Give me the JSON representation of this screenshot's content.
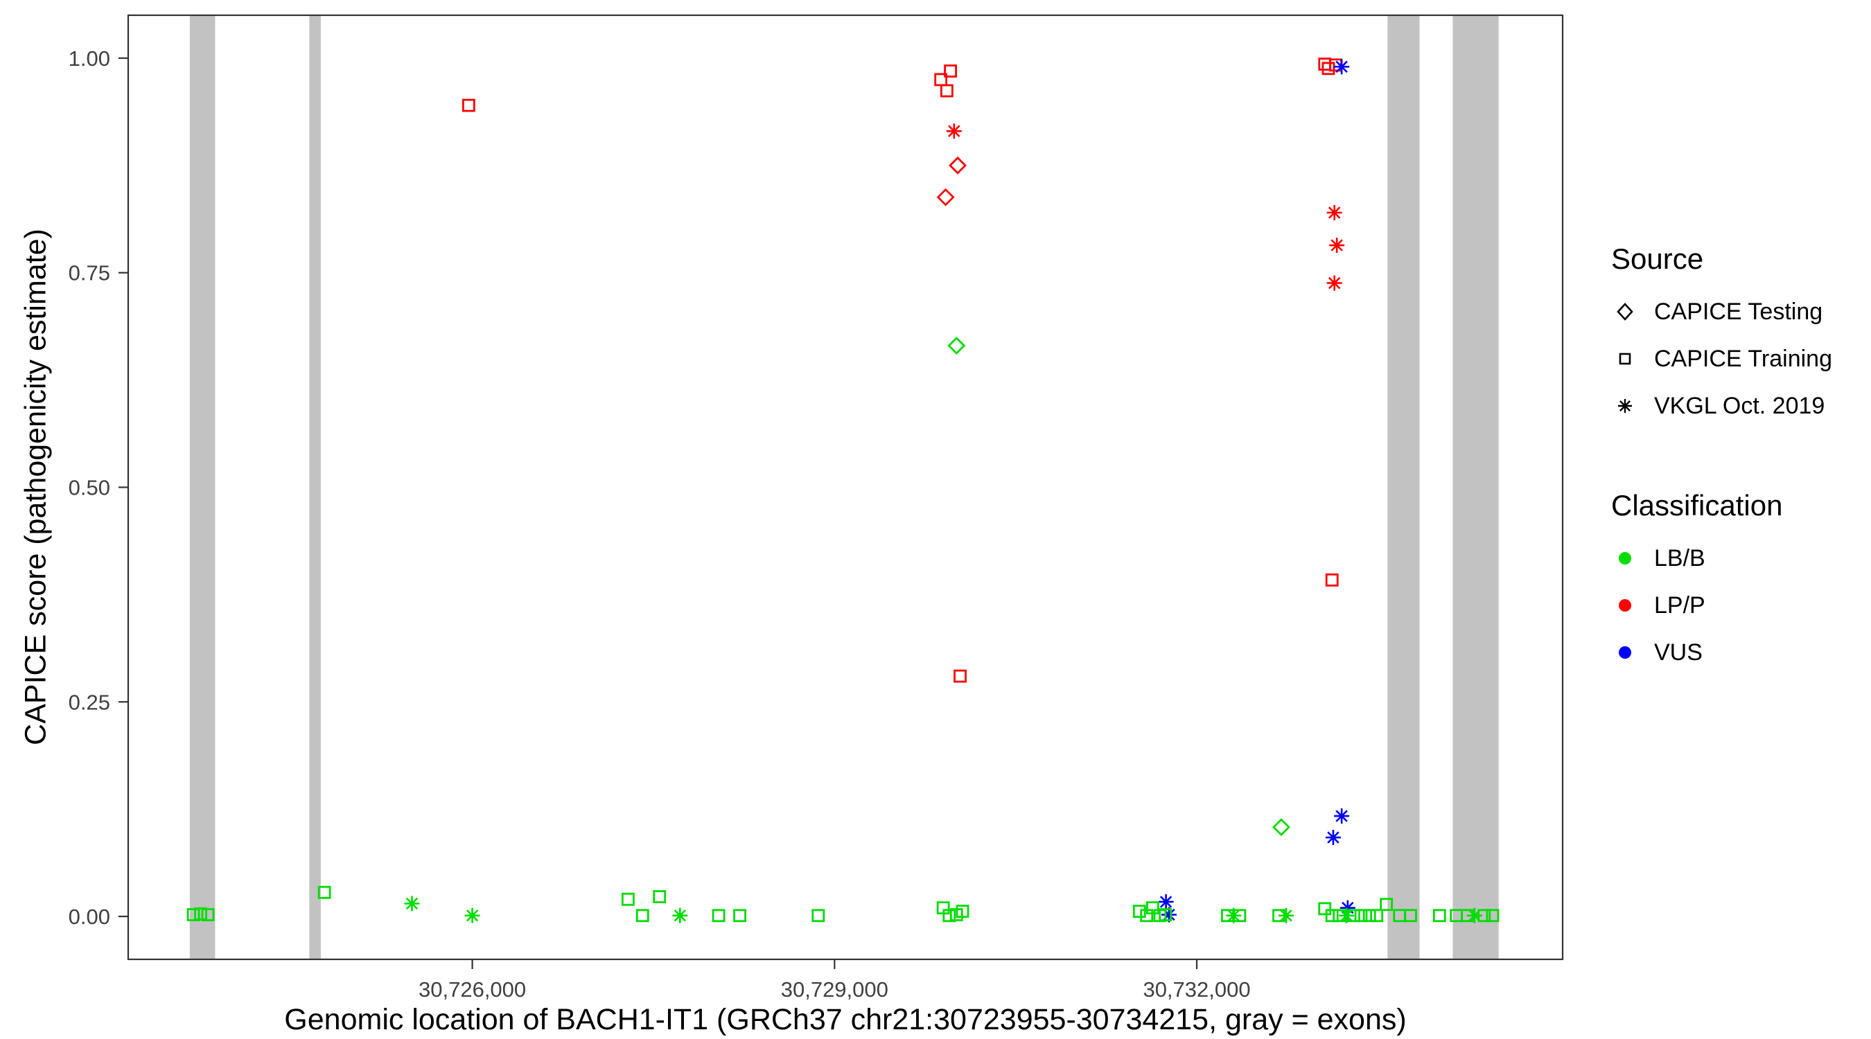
{
  "legend": {
    "source": {
      "title": "Source",
      "items": [
        {
          "label": "CAPICE Testing",
          "shape": "diamond"
        },
        {
          "label": "CAPICE Training",
          "shape": "square"
        },
        {
          "label": "VKGL Oct. 2019",
          "shape": "asterisk"
        }
      ]
    },
    "classification": {
      "title": "Classification",
      "items": [
        {
          "label": "LB/B",
          "color": "#00dd00"
        },
        {
          "label": "LP/P",
          "color": "#ff0000"
        },
        {
          "label": "VUS",
          "color": "#0000ff"
        }
      ]
    }
  },
  "colors": {
    "LB/B": "#00dd00",
    "LP/P": "#ff0000",
    "VUS": "#0000ff",
    "exon": "#c2c2c2",
    "axis": "#333333",
    "tick_text": "#404040"
  },
  "chart_data": {
    "type": "scatter",
    "title": "",
    "xlabel": "Genomic location of BACH1-IT1 (GRCh37 chr21:30723955-30734215, gray = exons)",
    "ylabel": "CAPICE score (pathogenicity estimate)",
    "x_domain": [
      30723150,
      30735030
    ],
    "y_domain": [
      -0.05,
      1.05
    ],
    "x_ticks": [
      {
        "value": 30726000,
        "label": "30,726,000"
      },
      {
        "value": 30729000,
        "label": "30,729,000"
      },
      {
        "value": 30732000,
        "label": "30,732,000"
      }
    ],
    "y_ticks": [
      {
        "value": 0.0,
        "label": "0.00"
      },
      {
        "value": 0.25,
        "label": "0.25"
      },
      {
        "value": 0.5,
        "label": "0.50"
      },
      {
        "value": 0.75,
        "label": "0.75"
      },
      {
        "value": 1.0,
        "label": "1.00"
      }
    ],
    "exon_regions": [
      [
        30723660,
        30723870
      ],
      [
        30724650,
        30724745
      ],
      [
        30733580,
        30733845
      ],
      [
        30734120,
        30734500
      ]
    ],
    "points": [
      {
        "x": 30725970,
        "y": 0.945,
        "classification": "LP/P",
        "source": "CAPICE Training"
      },
      {
        "x": 30729880,
        "y": 0.975,
        "classification": "LP/P",
        "source": "CAPICE Training"
      },
      {
        "x": 30729960,
        "y": 0.985,
        "classification": "LP/P",
        "source": "CAPICE Training"
      },
      {
        "x": 30729930,
        "y": 0.962,
        "classification": "LP/P",
        "source": "CAPICE Training"
      },
      {
        "x": 30729990,
        "y": 0.915,
        "classification": "LP/P",
        "source": "VKGL Oct. 2019"
      },
      {
        "x": 30730020,
        "y": 0.875,
        "classification": "LP/P",
        "source": "CAPICE Testing"
      },
      {
        "x": 30729920,
        "y": 0.838,
        "classification": "LP/P",
        "source": "CAPICE Testing"
      },
      {
        "x": 30730040,
        "y": 0.28,
        "classification": "LP/P",
        "source": "CAPICE Training"
      },
      {
        "x": 30733060,
        "y": 0.993,
        "classification": "LP/P",
        "source": "CAPICE Training"
      },
      {
        "x": 30733090,
        "y": 0.988,
        "classification": "LP/P",
        "source": "CAPICE Training"
      },
      {
        "x": 30733150,
        "y": 0.992,
        "classification": "LP/P",
        "source": "CAPICE Training"
      },
      {
        "x": 30733140,
        "y": 0.82,
        "classification": "LP/P",
        "source": "VKGL Oct. 2019"
      },
      {
        "x": 30733160,
        "y": 0.782,
        "classification": "LP/P",
        "source": "VKGL Oct. 2019"
      },
      {
        "x": 30733140,
        "y": 0.738,
        "classification": "LP/P",
        "source": "VKGL Oct. 2019"
      },
      {
        "x": 30733120,
        "y": 0.392,
        "classification": "LP/P",
        "source": "CAPICE Training"
      },
      {
        "x": 30733200,
        "y": 0.99,
        "classification": "VUS",
        "source": "VKGL Oct. 2019"
      },
      {
        "x": 30733200,
        "y": 0.117,
        "classification": "VUS",
        "source": "VKGL Oct. 2019"
      },
      {
        "x": 30733130,
        "y": 0.092,
        "classification": "VUS",
        "source": "VKGL Oct. 2019"
      },
      {
        "x": 30731745,
        "y": 0.017,
        "classification": "VUS",
        "source": "VKGL Oct. 2019"
      },
      {
        "x": 30731770,
        "y": 0.002,
        "classification": "VUS",
        "source": "VKGL Oct. 2019"
      },
      {
        "x": 30733250,
        "y": 0.01,
        "classification": "VUS",
        "source": "VKGL Oct. 2019"
      },
      {
        "x": 30730010,
        "y": 0.665,
        "classification": "LB/B",
        "source": "CAPICE Testing"
      },
      {
        "x": 30732700,
        "y": 0.104,
        "classification": "LB/B",
        "source": "CAPICE Testing"
      },
      {
        "x": 30723690,
        "y": 0.002,
        "classification": "LB/B",
        "source": "CAPICE Training"
      },
      {
        "x": 30723750,
        "y": 0.003,
        "classification": "LB/B",
        "source": "CAPICE Training"
      },
      {
        "x": 30723810,
        "y": 0.002,
        "classification": "LB/B",
        "source": "CAPICE Training"
      },
      {
        "x": 30724775,
        "y": 0.028,
        "classification": "LB/B",
        "source": "CAPICE Training"
      },
      {
        "x": 30725500,
        "y": 0.015,
        "classification": "LB/B",
        "source": "VKGL Oct. 2019"
      },
      {
        "x": 30726000,
        "y": 0.001,
        "classification": "LB/B",
        "source": "VKGL Oct. 2019"
      },
      {
        "x": 30727290,
        "y": 0.02,
        "classification": "LB/B",
        "source": "CAPICE Training"
      },
      {
        "x": 30727410,
        "y": 0.001,
        "classification": "LB/B",
        "source": "CAPICE Training"
      },
      {
        "x": 30727550,
        "y": 0.023,
        "classification": "LB/B",
        "source": "CAPICE Training"
      },
      {
        "x": 30727720,
        "y": 0.001,
        "classification": "LB/B",
        "source": "VKGL Oct. 2019"
      },
      {
        "x": 30728040,
        "y": 0.001,
        "classification": "LB/B",
        "source": "CAPICE Training"
      },
      {
        "x": 30728215,
        "y": 0.001,
        "classification": "LB/B",
        "source": "CAPICE Training"
      },
      {
        "x": 30728865,
        "y": 0.001,
        "classification": "LB/B",
        "source": "CAPICE Training"
      },
      {
        "x": 30729900,
        "y": 0.01,
        "classification": "LB/B",
        "source": "CAPICE Training"
      },
      {
        "x": 30729950,
        "y": 0.001,
        "classification": "LB/B",
        "source": "CAPICE Training"
      },
      {
        "x": 30730010,
        "y": 0.002,
        "classification": "LB/B",
        "source": "CAPICE Training"
      },
      {
        "x": 30730060,
        "y": 0.006,
        "classification": "LB/B",
        "source": "CAPICE Training"
      },
      {
        "x": 30731525,
        "y": 0.006,
        "classification": "LB/B",
        "source": "CAPICE Training"
      },
      {
        "x": 30731585,
        "y": 0.001,
        "classification": "LB/B",
        "source": "CAPICE Training"
      },
      {
        "x": 30731635,
        "y": 0.01,
        "classification": "LB/B",
        "source": "CAPICE Training"
      },
      {
        "x": 30731695,
        "y": 0.001,
        "classification": "LB/B",
        "source": "CAPICE Training"
      },
      {
        "x": 30731740,
        "y": 0.002,
        "classification": "LB/B",
        "source": "CAPICE Training"
      },
      {
        "x": 30732255,
        "y": 0.001,
        "classification": "LB/B",
        "source": "CAPICE Training"
      },
      {
        "x": 30732305,
        "y": 0.001,
        "classification": "LB/B",
        "source": "VKGL Oct. 2019"
      },
      {
        "x": 30732355,
        "y": 0.001,
        "classification": "LB/B",
        "source": "CAPICE Training"
      },
      {
        "x": 30732680,
        "y": 0.001,
        "classification": "LB/B",
        "source": "CAPICE Training"
      },
      {
        "x": 30732740,
        "y": 0.001,
        "classification": "LB/B",
        "source": "VKGL Oct. 2019"
      },
      {
        "x": 30733060,
        "y": 0.009,
        "classification": "LB/B",
        "source": "CAPICE Training"
      },
      {
        "x": 30733120,
        "y": 0.001,
        "classification": "LB/B",
        "source": "CAPICE Training"
      },
      {
        "x": 30733180,
        "y": 0.001,
        "classification": "LB/B",
        "source": "CAPICE Training"
      },
      {
        "x": 30733240,
        "y": 0.001,
        "classification": "LB/B",
        "source": "VKGL Oct. 2019"
      },
      {
        "x": 30733300,
        "y": 0.001,
        "classification": "LB/B",
        "source": "CAPICE Training"
      },
      {
        "x": 30733360,
        "y": 0.001,
        "classification": "LB/B",
        "source": "CAPICE Training"
      },
      {
        "x": 30733430,
        "y": 0.001,
        "classification": "LB/B",
        "source": "CAPICE Training"
      },
      {
        "x": 30733490,
        "y": 0.001,
        "classification": "LB/B",
        "source": "CAPICE Training"
      },
      {
        "x": 30733570,
        "y": 0.014,
        "classification": "LB/B",
        "source": "CAPICE Training"
      },
      {
        "x": 30733680,
        "y": 0.001,
        "classification": "LB/B",
        "source": "CAPICE Training"
      },
      {
        "x": 30733770,
        "y": 0.001,
        "classification": "LB/B",
        "source": "CAPICE Training"
      },
      {
        "x": 30734010,
        "y": 0.001,
        "classification": "LB/B",
        "source": "CAPICE Training"
      },
      {
        "x": 30734150,
        "y": 0.001,
        "classification": "LB/B",
        "source": "CAPICE Training"
      },
      {
        "x": 30734240,
        "y": 0.001,
        "classification": "LB/B",
        "source": "CAPICE Training"
      },
      {
        "x": 30734300,
        "y": 0.001,
        "classification": "LB/B",
        "source": "VKGL Oct. 2019"
      },
      {
        "x": 30734380,
        "y": 0.001,
        "classification": "LB/B",
        "source": "CAPICE Training"
      },
      {
        "x": 30734450,
        "y": 0.001,
        "classification": "LB/B",
        "source": "CAPICE Training"
      }
    ]
  }
}
